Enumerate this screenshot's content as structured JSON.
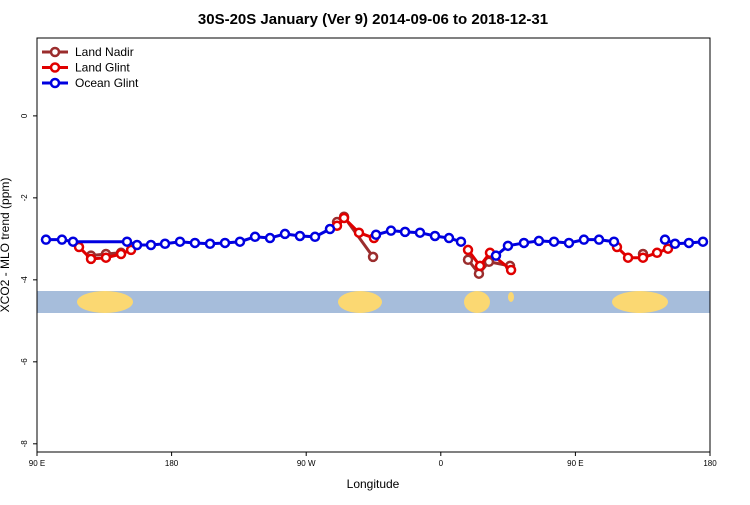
{
  "chart_data": {
    "type": "line",
    "title": "30S-20S January (Ver 9)   2014-09-06 to 2018-12-31",
    "xlabel": "Longitude",
    "ylabel": "XCO2 - MLO trend (ppm)",
    "xlim": [
      90,
      540
    ],
    "ylim": [
      -8.2,
      1.9
    ],
    "xticks": [
      {
        "value": 90,
        "label": "90 E"
      },
      180,
      {
        "value": 270,
        "label": "90 W"
      },
      {
        "value": 360,
        "label": "0"
      },
      {
        "value": 450,
        "label": "90 E"
      },
      {
        "value": 540,
        "label": "180"
      }
    ],
    "yticks": [
      0,
      -2,
      -4,
      -6,
      -8
    ],
    "legend": "top-left",
    "series": [
      {
        "name": "Land Nadir",
        "color": "#9b2d2d",
        "x": [
          126.1,
          136.1,
          146.2,
          null,
          290.6,
          295.3,
          314.7,
          null,
          378.2,
          385.5,
          392.2,
          406.3,
          null,
          495.2
        ],
        "values": [
          -3.41,
          -3.37,
          -3.34,
          null,
          -2.59,
          -2.46,
          -3.44,
          null,
          -3.51,
          -3.85,
          -3.56,
          -3.66,
          null,
          -3.37
        ]
      },
      {
        "name": "Land Glint",
        "color": "#e00000",
        "x": [
          118.1,
          126.1,
          136.1,
          146.2,
          152.9,
          null,
          290.6,
          295.3,
          305.3,
          315.3,
          null,
          378.2,
          386.2,
          392.9,
          407.0,
          null,
          477.8,
          485.2,
          495.2,
          504.6,
          511.9
        ],
        "values": [
          -3.2,
          -3.49,
          -3.46,
          -3.37,
          -3.27,
          null,
          -2.68,
          -2.49,
          -2.85,
          -2.98,
          null,
          -3.27,
          -3.66,
          -3.34,
          -3.76,
          null,
          -3.2,
          -3.46,
          -3.46,
          -3.34,
          -3.24
        ]
      },
      {
        "name": "Ocean Glint",
        "color": "#0000e0",
        "x": [
          96.0,
          106.7,
          114.1,
          150.2,
          156.9,
          166.2,
          175.6,
          185.6,
          195.6,
          205.7,
          215.7,
          225.7,
          235.8,
          245.8,
          255.8,
          265.8,
          275.9,
          285.9,
          null,
          316.7,
          326.7,
          336.1,
          346.1,
          356.1,
          365.5,
          373.5,
          null,
          396.9,
          404.9,
          415.6,
          425.6,
          435.7,
          445.7,
          455.7,
          465.8,
          475.8,
          null,
          509.9,
          516.6,
          525.9,
          535.3
        ],
        "values": [
          -3.02,
          -3.02,
          -3.07,
          -3.07,
          -3.15,
          -3.15,
          -3.12,
          -3.07,
          -3.1,
          -3.12,
          -3.1,
          -3.07,
          -2.95,
          -2.98,
          -2.88,
          -2.93,
          -2.95,
          -2.76,
          null,
          -2.9,
          -2.8,
          -2.83,
          -2.85,
          -2.93,
          -2.98,
          -3.07,
          null,
          -3.41,
          -3.17,
          -3.1,
          -3.05,
          -3.07,
          -3.1,
          -3.02,
          -3.02,
          -3.07,
          null,
          -3.02,
          -3.12,
          -3.1,
          -3.07
        ]
      }
    ]
  }
}
